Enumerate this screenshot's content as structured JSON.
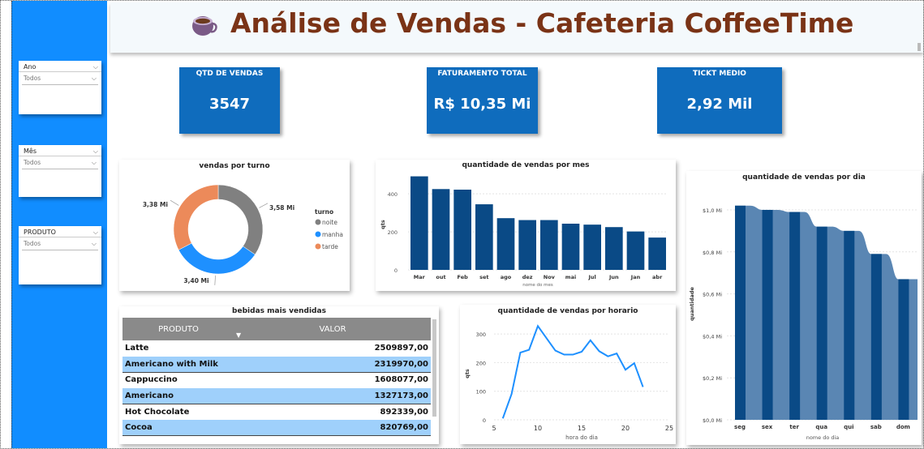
{
  "header": {
    "title": "Análise de Vendas - Cafeteria CoffeeTime"
  },
  "filters": [
    {
      "label": "Ano",
      "value": "Todos"
    },
    {
      "label": "Mês",
      "value": "Todos"
    },
    {
      "label": "PRODUTO",
      "value": "Todos"
    }
  ],
  "kpis": [
    {
      "label": "QTD DE VENDAS",
      "value": "3547"
    },
    {
      "label": "FATURAMENTO TOTAL",
      "value": "R$ 10,35 Mi"
    },
    {
      "label": "TICKT MEDIO",
      "value": "2,92 Mil"
    }
  ],
  "colors": {
    "sidebar": "#118dff",
    "kpi": "#0f6cbd",
    "bar": "#0a4a86",
    "noite": "#808080",
    "manha": "#1e90ff",
    "tarde": "#ec8a5a"
  },
  "table": {
    "title": "bebidas mais vendidas",
    "headers": [
      "PRODUTO",
      "VALOR"
    ],
    "rows": [
      [
        "Latte",
        "2509897,00"
      ],
      [
        "Americano with Milk",
        "2319970,00"
      ],
      [
        "Cappuccino",
        "1608077,00"
      ],
      [
        "Americano",
        "1327173,00"
      ],
      [
        "Hot Chocolate",
        "892339,00"
      ],
      [
        "Cocoa",
        "820769,00"
      ]
    ]
  },
  "chart_data": [
    {
      "type": "pie",
      "title": "vendas por turno",
      "legend_title": "turno",
      "categories": [
        "noite",
        "manha",
        "tarde"
      ],
      "values": [
        3.58,
        3.4,
        3.38
      ],
      "labels": [
        "3,58 Mi",
        "3,40 Mi",
        "3,38 Mi"
      ]
    },
    {
      "type": "bar",
      "title": "quantidade de vendas por mes",
      "xlabel": "nome do mes",
      "ylabel": "qts",
      "categories": [
        "Mar",
        "out",
        "Feb",
        "set",
        "ago",
        "dez",
        "Nov",
        "mai",
        "Jul",
        "Jun",
        "Jan",
        "abr"
      ],
      "values": [
        492,
        425,
        422,
        345,
        272,
        262,
        262,
        243,
        238,
        225,
        202,
        170
      ],
      "ylim": [
        0,
        520
      ],
      "yticks": [
        "0",
        "200",
        "400"
      ]
    },
    {
      "type": "line",
      "title": "quantidade de vendas por horario",
      "xlabel": "hora do dia",
      "ylabel": "qts",
      "x": [
        6,
        7,
        8,
        9,
        10,
        11,
        12,
        13,
        14,
        15,
        16,
        17,
        18,
        19,
        20,
        21,
        22
      ],
      "values": [
        5,
        90,
        235,
        245,
        328,
        285,
        242,
        228,
        228,
        238,
        278,
        240,
        222,
        232,
        175,
        198,
        115
      ],
      "xlim": [
        5,
        25
      ],
      "ylim": [
        0,
        340
      ],
      "xticks": [
        "5",
        "10",
        "15",
        "20",
        "25"
      ],
      "yticks": [
        "0",
        "100",
        "200",
        "300"
      ]
    },
    {
      "type": "area",
      "title": "quantidade de vendas por dia",
      "xlabel": "nome do dia",
      "ylabel": "quantidade",
      "categories": [
        "seg",
        "sex",
        "ter",
        "qua",
        "qui",
        "sab",
        "dom"
      ],
      "values": [
        1.02,
        1.0,
        0.99,
        0.92,
        0.9,
        0.79,
        0.67
      ],
      "ylim": [
        0,
        1.05
      ],
      "yticks": [
        "$0,0 Mi",
        "$0,2 Mi",
        "$0,4 Mi",
        "$0,6 Mi",
        "$0,8 Mi",
        "$1,0 Mi"
      ]
    }
  ]
}
